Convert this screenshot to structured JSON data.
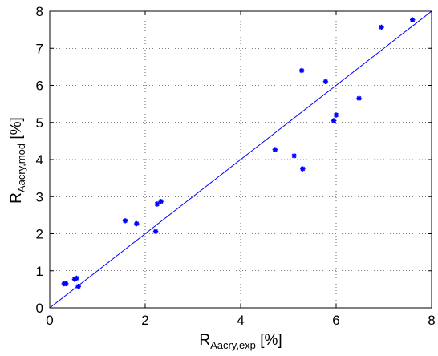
{
  "chart_data": {
    "type": "scatter",
    "xlim": [
      0,
      8
    ],
    "ylim": [
      0,
      8
    ],
    "x_ticks": [
      0,
      2,
      4,
      6,
      8
    ],
    "y_ticks": [
      0,
      1,
      2,
      3,
      4,
      5,
      6,
      7,
      8
    ],
    "grid": true,
    "xlabel": {
      "main": "R",
      "sub": "Aacry,exp",
      "unit": " [%]"
    },
    "ylabel": {
      "main": "R",
      "sub": "Aacry,mod",
      "unit": " [%]"
    },
    "marker_color": "#0000ff",
    "line_color": "#0000ff",
    "reference_line": {
      "x": [
        0,
        8
      ],
      "y": [
        0,
        8
      ]
    },
    "points": [
      {
        "x": 0.3,
        "y": 0.65
      },
      {
        "x": 0.34,
        "y": 0.65
      },
      {
        "x": 0.52,
        "y": 0.77
      },
      {
        "x": 0.56,
        "y": 0.8
      },
      {
        "x": 0.6,
        "y": 0.58
      },
      {
        "x": 1.58,
        "y": 2.35
      },
      {
        "x": 1.82,
        "y": 2.27
      },
      {
        "x": 2.22,
        "y": 2.06
      },
      {
        "x": 2.25,
        "y": 2.8
      },
      {
        "x": 2.33,
        "y": 2.87
      },
      {
        "x": 4.72,
        "y": 4.27
      },
      {
        "x": 5.12,
        "y": 4.1
      },
      {
        "x": 5.28,
        "y": 6.4
      },
      {
        "x": 5.3,
        "y": 3.75
      },
      {
        "x": 5.78,
        "y": 6.1
      },
      {
        "x": 5.95,
        "y": 5.05
      },
      {
        "x": 6.0,
        "y": 5.2
      },
      {
        "x": 6.48,
        "y": 5.65
      },
      {
        "x": 6.95,
        "y": 7.57
      },
      {
        "x": 7.6,
        "y": 7.77
      }
    ]
  }
}
